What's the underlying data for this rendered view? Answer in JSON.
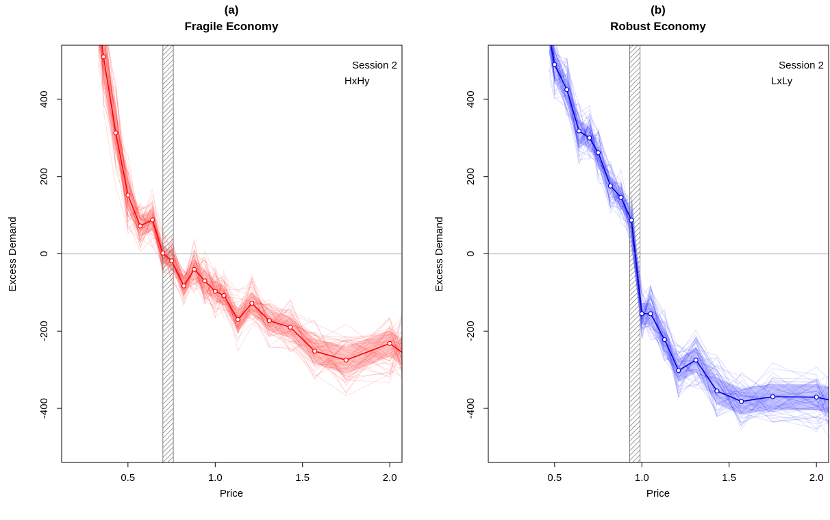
{
  "chart_data": [
    {
      "type": "line",
      "panel_label": "(a)",
      "title": "Fragile Economy",
      "xlabel": "Price",
      "ylabel": "Excess Demand",
      "annotations": [
        "Session 2",
        "HxHy"
      ],
      "xlim": [
        0.12,
        2.07
      ],
      "ylim": [
        -540,
        540
      ],
      "xticks": [
        0.5,
        1.0,
        1.5,
        2.0
      ],
      "xtick_labels": [
        "0.5",
        "1.0",
        "1.5",
        "2.0"
      ],
      "yticks": [
        -400,
        -200,
        0,
        200,
        400
      ],
      "ytick_labels": [
        "-400",
        "-200",
        "0",
        "200",
        "400"
      ],
      "reference_line_y": 0,
      "shaded_band_x": [
        0.7,
        0.76
      ],
      "color": "#ff0000",
      "band_color": "#ff0000",
      "series": [
        {
          "x": [
            0.33,
            0.36,
            0.43,
            0.5,
            0.57,
            0.64,
            0.7,
            0.75,
            0.82,
            0.88,
            0.94,
            1.0,
            1.05,
            1.13,
            1.21,
            1.31,
            1.43,
            1.57,
            1.75,
            2.0,
            2.07
          ],
          "y": [
            620,
            510,
            313,
            152,
            72,
            88,
            2,
            -18,
            -83,
            -40,
            -70,
            -97,
            -108,
            -170,
            -128,
            -173,
            -190,
            -252,
            -275,
            -232,
            -255
          ]
        }
      ],
      "band_halfwidth": [
        70,
        60,
        50,
        40,
        28,
        28,
        22,
        22,
        24,
        26,
        26,
        26,
        26,
        28,
        28,
        28,
        28,
        32,
        36,
        34,
        34
      ]
    },
    {
      "type": "line",
      "panel_label": "(b)",
      "title": "Robust Economy",
      "xlabel": "Price",
      "ylabel": "Excess Demand",
      "annotations": [
        "Session 2",
        "LxLy"
      ],
      "xlim": [
        0.12,
        2.07
      ],
      "ylim": [
        -540,
        540
      ],
      "xticks": [
        0.5,
        1.0,
        1.5,
        2.0
      ],
      "xtick_labels": [
        "0.5",
        "1.0",
        "1.5",
        "2.0"
      ],
      "yticks": [
        -400,
        -200,
        0,
        200,
        400
      ],
      "ytick_labels": [
        "-400",
        "-200",
        "0",
        "200",
        "400"
      ],
      "reference_line_y": 0,
      "shaded_band_x": [
        0.93,
        0.99
      ],
      "color": "#0000dd",
      "band_color": "#0000ff",
      "series": [
        {
          "x": [
            0.47,
            0.5,
            0.57,
            0.64,
            0.7,
            0.75,
            0.82,
            0.88,
            0.94,
            1.0,
            1.05,
            1.13,
            1.21,
            1.31,
            1.43,
            1.57,
            1.75,
            2.0,
            2.07
          ],
          "y": [
            560,
            490,
            425,
            318,
            300,
            262,
            176,
            146,
            87,
            -155,
            -155,
            -222,
            -302,
            -275,
            -355,
            -382,
            -370,
            -371,
            -378
          ]
        }
      ],
      "band_halfwidth": [
        40,
        36,
        32,
        30,
        28,
        26,
        24,
        26,
        26,
        28,
        28,
        30,
        30,
        32,
        34,
        34,
        34,
        34,
        34
      ]
    }
  ]
}
